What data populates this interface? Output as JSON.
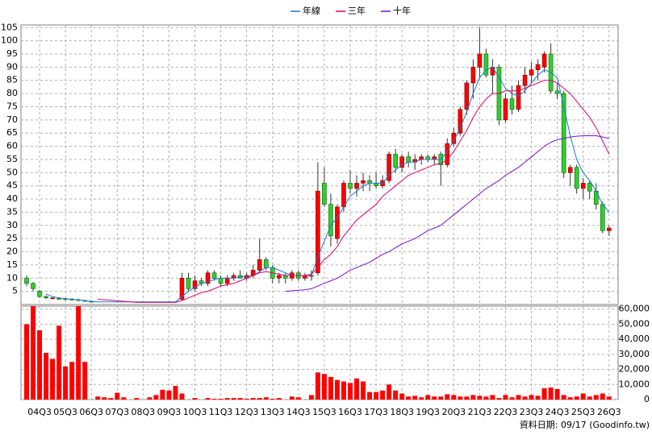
{
  "chart_data": [
    {
      "type": "candlestick",
      "categories": [
        null,
        null,
        "04Q3",
        null,
        null,
        null,
        "05Q3",
        null,
        null,
        null,
        "06Q3",
        null,
        null,
        null,
        "07Q3",
        null,
        null,
        null,
        "08Q3",
        null,
        null,
        null,
        "09Q3",
        null,
        null,
        null,
        "10Q3",
        null,
        null,
        null,
        "11Q3",
        null,
        null,
        null,
        "12Q3",
        null,
        null,
        null,
        "13Q3",
        null,
        null,
        null,
        "14Q3",
        null,
        null,
        null,
        "15Q3",
        null,
        null,
        null,
        "16Q3",
        null,
        null,
        null,
        "17Q3",
        null,
        null,
        null,
        "18Q3",
        null,
        null,
        null,
        "19Q3",
        null,
        null,
        null,
        "20Q3",
        null,
        null,
        null,
        "21Q3",
        null,
        null,
        null,
        "22Q3",
        null,
        null,
        null,
        "23Q3",
        null,
        null,
        null,
        "24Q3",
        null,
        null,
        null,
        "25Q3",
        null,
        null,
        null,
        "26Q3"
      ],
      "open": [
        10,
        8,
        5,
        3,
        2.5,
        2.3,
        2.2,
        2,
        1.8,
        1.5,
        1.2,
        null,
        null,
        null,
        null,
        null,
        null,
        null,
        null,
        null,
        null,
        null,
        null,
        null,
        2,
        10,
        6,
        9,
        8,
        12,
        10,
        8,
        10,
        11,
        10,
        11,
        13,
        17,
        14,
        10,
        11,
        10,
        12,
        10,
        11,
        12,
        46,
        38,
        25,
        37,
        46,
        44,
        46,
        47,
        46,
        45,
        47,
        57,
        52,
        56,
        54,
        55,
        56,
        55,
        57,
        53,
        61,
        65,
        74,
        84,
        90,
        95,
        87,
        90,
        70,
        78,
        74,
        83,
        87,
        89,
        90,
        95,
        81,
        80,
        50,
        52,
        44,
        46,
        43,
        38,
        28
      ],
      "high": [
        11,
        8.5,
        5.5,
        3.5,
        3,
        2.8,
        2.5,
        2.5,
        2.2,
        1.8,
        1.5,
        null,
        null,
        null,
        null,
        null,
        null,
        null,
        null,
        null,
        null,
        null,
        null,
        null,
        12,
        12,
        11,
        10,
        13,
        13,
        11,
        11,
        12,
        13,
        12,
        15,
        25,
        18,
        15,
        12,
        12,
        13,
        13,
        12,
        13,
        54,
        52,
        42,
        38,
        47,
        51,
        49,
        50,
        49,
        50,
        49,
        58,
        59,
        57,
        58,
        57,
        57,
        57,
        57,
        58,
        63,
        67,
        75,
        85,
        93,
        105,
        97,
        93,
        91,
        80,
        83,
        85,
        90,
        92,
        93,
        96,
        99,
        84,
        81,
        53,
        53,
        48,
        47,
        46,
        39,
        30
      ],
      "low": [
        7,
        5,
        2.5,
        2,
        2,
        1.8,
        1.5,
        1.5,
        1.3,
        1,
        0.8,
        null,
        null,
        null,
        null,
        null,
        null,
        null,
        null,
        null,
        null,
        null,
        null,
        null,
        1.5,
        5,
        5,
        7,
        7,
        9,
        7,
        7,
        9,
        10,
        9,
        10,
        12,
        13,
        8,
        8,
        8,
        9,
        9,
        9,
        9,
        11,
        37,
        22,
        23,
        35,
        42,
        41,
        43,
        43,
        44,
        44,
        46,
        50,
        50,
        52,
        51,
        53,
        54,
        53,
        45,
        52,
        60,
        64,
        72,
        78,
        86,
        86,
        80,
        68,
        69,
        72,
        73,
        80,
        84,
        85,
        88,
        80,
        78,
        48,
        45,
        42,
        40,
        40,
        36,
        27,
        26
      ],
      "close": [
        8,
        6,
        3,
        2.5,
        2.5,
        2.2,
        2,
        1.8,
        1.5,
        1.2,
        1,
        null,
        null,
        null,
        null,
        null,
        null,
        null,
        null,
        null,
        null,
        null,
        null,
        null,
        10,
        6,
        9,
        8,
        12,
        10,
        8,
        10,
        11,
        10,
        11,
        13,
        17,
        14,
        10,
        11,
        10,
        12,
        10,
        11,
        11,
        43,
        38,
        26,
        37,
        46,
        44,
        46,
        47,
        46,
        45,
        47,
        57,
        52,
        56,
        54,
        55,
        56,
        55,
        56,
        53,
        61,
        65,
        74,
        84,
        90,
        95,
        87,
        90,
        70,
        78,
        74,
        83,
        87,
        89,
        91,
        95,
        81,
        80,
        50,
        52,
        44,
        46,
        43,
        38,
        28,
        29
      ],
      "up_color": "#ff0000",
      "down_color": "#33cc33",
      "series": [
        {
          "name": "年線",
          "color": "#1a78d4",
          "values": [
            null,
            null,
            null,
            4,
            3,
            2.5,
            2.2,
            2,
            1.8,
            1.5,
            1.2,
            1,
            1,
            1,
            1,
            1,
            1,
            1,
            1,
            1,
            1,
            1,
            1,
            1,
            3,
            5,
            6.5,
            8,
            8.5,
            9.5,
            10,
            10,
            10,
            10.5,
            10.5,
            11,
            12.5,
            14,
            14,
            13,
            12,
            11,
            11,
            11,
            11,
            18,
            24,
            30,
            33,
            37,
            41,
            43,
            45,
            46,
            46,
            46,
            49,
            51,
            53,
            54,
            54,
            55,
            55,
            55,
            55,
            58,
            62,
            67,
            73,
            80,
            86,
            89,
            90,
            86,
            82,
            80,
            79,
            81,
            84,
            87,
            89,
            88,
            86,
            75,
            64,
            55,
            50,
            47,
            43,
            38,
            35
          ]
        },
        {
          "name": "三年",
          "color": "#e0006a",
          "values": [
            null,
            null,
            null,
            null,
            null,
            null,
            null,
            null,
            null,
            null,
            null,
            2,
            1.8,
            1.6,
            1.4,
            1.2,
            1,
            0.8,
            0.8,
            0.8,
            0.8,
            0.8,
            0.8,
            0.8,
            1.5,
            2.5,
            3.5,
            4.5,
            5,
            6,
            7,
            7.5,
            8,
            9,
            10,
            11,
            12,
            12.5,
            12,
            11.5,
            11,
            11,
            11,
            11,
            11.5,
            14,
            17,
            19,
            22,
            26,
            29,
            32,
            34,
            36,
            38,
            41,
            43,
            45,
            47,
            49,
            50,
            51,
            52,
            53,
            53.5,
            55,
            58,
            62,
            66,
            71,
            75,
            78,
            80,
            80,
            81,
            81,
            81,
            82,
            83,
            84,
            85,
            85,
            84,
            82,
            80,
            77,
            74,
            71,
            67,
            62,
            57
          ]
        },
        {
          "name": "十年",
          "color": "#7a10d0",
          "values": [
            null,
            null,
            null,
            null,
            null,
            null,
            null,
            null,
            null,
            null,
            null,
            null,
            null,
            null,
            null,
            null,
            null,
            null,
            null,
            null,
            null,
            null,
            null,
            null,
            null,
            null,
            null,
            null,
            null,
            null,
            null,
            null,
            null,
            null,
            null,
            null,
            null,
            null,
            null,
            null,
            5,
            5.2,
            5.4,
            5.6,
            6,
            7,
            8,
            9,
            10,
            11.5,
            13,
            14,
            15,
            16,
            17.5,
            19,
            20,
            21.5,
            23,
            24,
            25,
            26.5,
            28,
            29,
            30,
            32,
            34,
            36,
            38,
            40,
            42,
            44,
            45.5,
            47,
            49,
            50.5,
            52,
            54,
            56,
            58,
            60,
            61.5,
            62.5,
            63,
            63.5,
            63.8,
            64,
            64,
            64,
            63.5,
            63
          ]
        }
      ],
      "ylim": [
        0,
        106
      ],
      "yticks": [
        5,
        10,
        15,
        20,
        25,
        30,
        35,
        40,
        45,
        50,
        55,
        60,
        65,
        70,
        75,
        80,
        85,
        90,
        95,
        100,
        105
      ],
      "grid": true,
      "legend": "top",
      "source_note": "資料日期: 09/17 (Goodinfo.tw)"
    },
    {
      "type": "bar",
      "values": [
        50000,
        62000,
        46000,
        31000,
        27000,
        49000,
        22000,
        25000,
        62000,
        25000,
        0,
        2000,
        1500,
        1000,
        4500,
        1500,
        0,
        1000,
        0,
        1500,
        3000,
        6500,
        6000,
        9000,
        4000,
        0,
        1000,
        0,
        1000,
        500,
        500,
        1000,
        1000,
        1000,
        500,
        1000,
        1000,
        1500,
        500,
        1000,
        0,
        2000,
        1500,
        0,
        3000,
        18000,
        17000,
        15000,
        13000,
        12000,
        11000,
        14000,
        12000,
        5000,
        5000,
        6000,
        10000,
        6000,
        4000,
        2000,
        2500,
        1500,
        3000,
        2000,
        2000,
        3500,
        3000,
        2000,
        2000,
        3000,
        2500,
        2000,
        3000,
        1000,
        3000,
        1500,
        3000,
        2000,
        3000,
        2500,
        7500,
        8000,
        7000,
        3000,
        1500,
        2000,
        4000,
        2000,
        3000,
        4000,
        2000
      ],
      "color": "#ff0000",
      "ylim": [
        0,
        62000
      ],
      "yticks": [
        {
          "value": 0,
          "label": "0"
        },
        {
          "value": 10000,
          "label": "10,000"
        },
        {
          "value": 20000,
          "label": "20,000"
        },
        {
          "value": 30000,
          "label": "30,000"
        },
        {
          "value": 40000,
          "label": "40,000"
        },
        {
          "value": 50000,
          "label": "50,000"
        },
        {
          "value": 60000,
          "label": "60,000"
        }
      ],
      "grid": true
    }
  ]
}
